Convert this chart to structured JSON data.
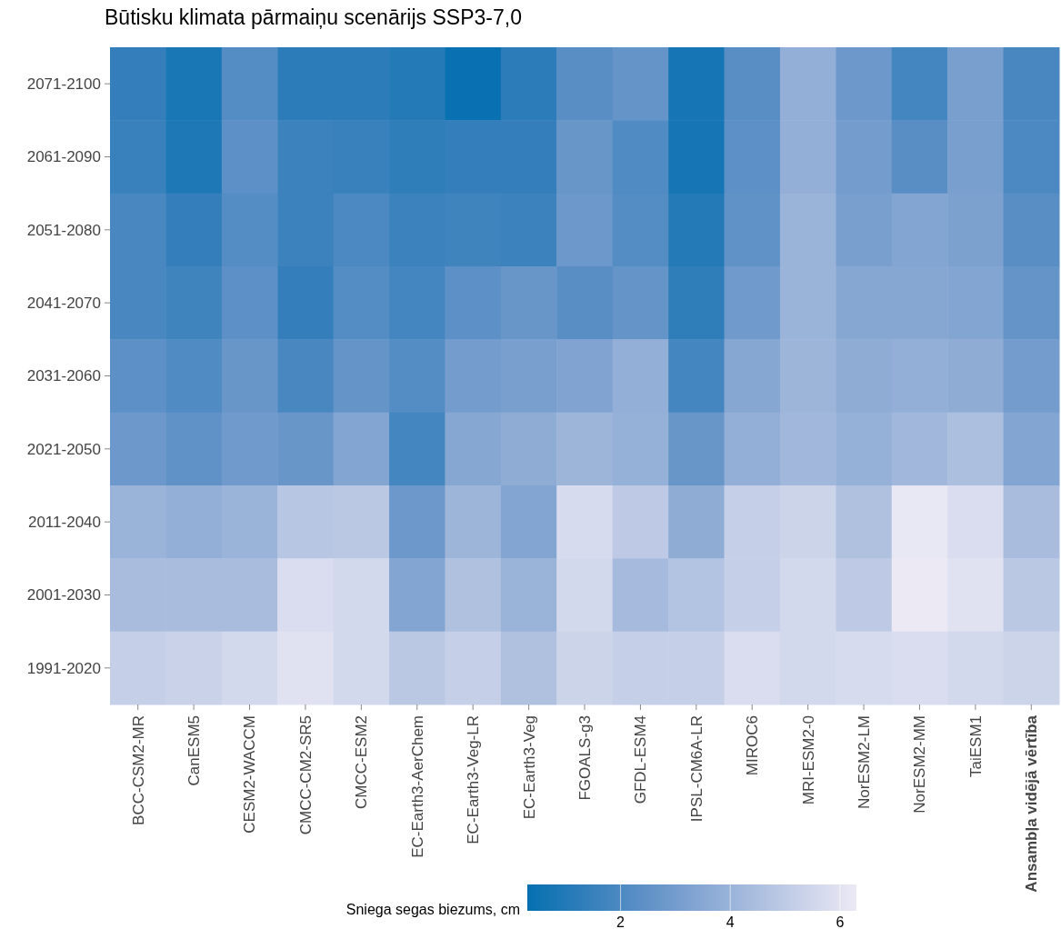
{
  "chart_data": {
    "type": "heatmap",
    "title": "Būtisku klimata pārmaiņu scenārijs SSP3-7,0",
    "clabel": "Sniega segas biezums, cm",
    "categories": [
      "BCC-CSM2-MR",
      "CanESM5",
      "CESM2-WACCM",
      "CMCC-CM2-SR5",
      "CMCC-ESM2",
      "EC-Earth3-AerChem",
      "EC-Earth3-Veg-LR",
      "EC-Earth3-Veg",
      "FGOALS-g3",
      "GFDL-ESM4",
      "IPSL-CM6A-LR",
      "MIROC6",
      "MRI-ESM2-0",
      "NorESM2-LM",
      "NorESM2-MM",
      "TaiESM1",
      "Ansambļa vidējā vērtība"
    ],
    "y_categories": [
      "2071-2100",
      "2061-2090",
      "2051-2080",
      "2041-2070",
      "2031-2060",
      "2021-2050",
      "2011-2040",
      "2001-2030",
      "1991-2020"
    ],
    "cells": [
      [
        1.4,
        0.8,
        2.2,
        1.2,
        1.2,
        1.0,
        0.4,
        1.2,
        2.3,
        2.6,
        0.7,
        2.3,
        3.8,
        2.8,
        1.8,
        3.1,
        1.9
      ],
      [
        1.5,
        0.9,
        2.4,
        1.6,
        1.5,
        1.3,
        1.4,
        1.4,
        2.7,
        2.1,
        0.7,
        2.4,
        3.8,
        3.0,
        2.3,
        3.1,
        2.0
      ],
      [
        1.9,
        1.4,
        2.2,
        1.6,
        2.0,
        1.6,
        1.7,
        1.6,
        2.8,
        2.2,
        1.0,
        2.5,
        4.0,
        3.1,
        3.4,
        3.2,
        2.3
      ],
      [
        1.9,
        1.7,
        2.4,
        1.4,
        2.2,
        1.8,
        2.4,
        2.7,
        2.3,
        2.6,
        1.3,
        2.9,
        4.0,
        3.5,
        3.5,
        3.4,
        2.6
      ],
      [
        2.4,
        2.1,
        2.7,
        1.9,
        2.6,
        2.2,
        3.0,
        3.1,
        3.3,
        3.8,
        1.8,
        3.5,
        4.1,
        3.7,
        3.8,
        3.7,
        3.0
      ],
      [
        2.8,
        2.5,
        2.9,
        2.7,
        3.4,
        1.8,
        3.5,
        3.7,
        4.1,
        3.9,
        2.7,
        3.8,
        4.2,
        3.9,
        4.2,
        4.5,
        3.4
      ],
      [
        4.0,
        3.8,
        4.0,
        4.8,
        4.9,
        2.8,
        4.1,
        3.4,
        5.7,
        5.0,
        3.7,
        5.2,
        5.4,
        4.6,
        6.2,
        5.8,
        4.4
      ],
      [
        4.4,
        4.4,
        4.4,
        5.8,
        5.6,
        3.4,
        4.6,
        4.0,
        5.6,
        4.3,
        4.7,
        5.2,
        5.6,
        5.0,
        6.3,
        6.0,
        4.9
      ],
      [
        5.2,
        5.3,
        5.6,
        6.0,
        5.6,
        4.9,
        5.2,
        4.6,
        5.4,
        5.2,
        5.2,
        5.8,
        5.6,
        5.7,
        5.8,
        5.6,
        5.4
      ]
    ],
    "clim": [
      0.3,
      6.3
    ],
    "cticks": [
      2,
      4,
      6
    ]
  }
}
